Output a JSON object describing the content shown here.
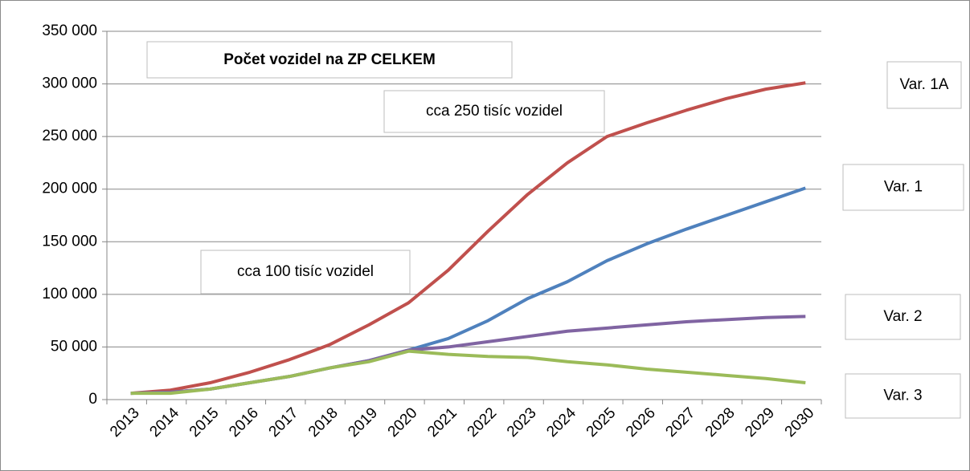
{
  "chart_data": {
    "type": "line",
    "title": "Počet vozidel na ZP CELKEM",
    "annotations": [
      "cca 250 tisíc vozidel",
      "cca 100 tisíc vozidel"
    ],
    "categories": [
      "2013",
      "2014",
      "2015",
      "2016",
      "2017",
      "2018",
      "2019",
      "2020",
      "2021",
      "2022",
      "2023",
      "2024",
      "2025",
      "2026",
      "2027",
      "2028",
      "2029",
      "2030"
    ],
    "series": [
      {
        "name": "Var. 1A",
        "color": "#c0504d",
        "values": [
          6000,
          9000,
          16000,
          26000,
          38000,
          52000,
          71000,
          92000,
          123000,
          160000,
          195000,
          225000,
          250000,
          263000,
          275000,
          286000,
          295000,
          301000
        ]
      },
      {
        "name": "Var. 1",
        "color": "#4f81bd",
        "values": [
          6000,
          7000,
          10000,
          16000,
          22000,
          30000,
          37000,
          47000,
          58000,
          75000,
          96000,
          112000,
          132000,
          148000,
          162000,
          175000,
          188000,
          201000
        ]
      },
      {
        "name": "Var. 2",
        "color": "#8064a2",
        "values": [
          6000,
          7000,
          10000,
          16000,
          22000,
          30000,
          37000,
          47000,
          50000,
          55000,
          60000,
          65000,
          68000,
          71000,
          74000,
          76000,
          78000,
          79000
        ]
      },
      {
        "name": "Var. 3",
        "color": "#9bbb59",
        "values": [
          6000,
          6000,
          10000,
          16000,
          22000,
          30000,
          36000,
          46000,
          43000,
          41000,
          40000,
          36000,
          33000,
          29000,
          26000,
          23000,
          20000,
          16000
        ]
      }
    ],
    "ylim": [
      0,
      350000
    ],
    "yticks": [
      {
        "value": 0,
        "label": "0"
      },
      {
        "value": 50000,
        "label": "50 000"
      },
      {
        "value": 100000,
        "label": "100 000"
      },
      {
        "value": 150000,
        "label": "150 000"
      },
      {
        "value": 200000,
        "label": "200 000"
      },
      {
        "value": 250000,
        "label": "250 000"
      },
      {
        "value": 300000,
        "label": "300 000"
      },
      {
        "value": 350000,
        "label": "350 000"
      }
    ],
    "grid": true
  }
}
